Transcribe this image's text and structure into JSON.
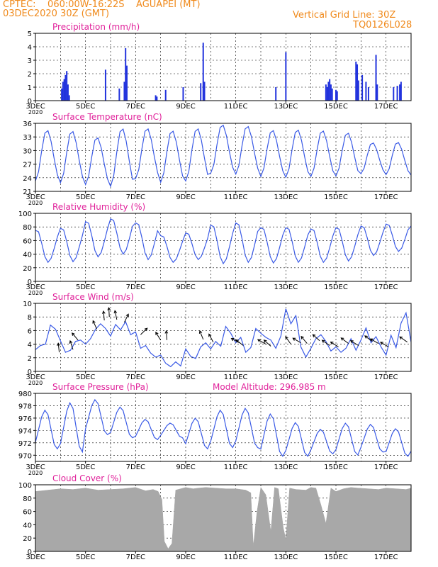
{
  "header": {
    "line1": "CPTEC:    060:00W-16:22S    AGUAPEI (MT)",
    "line2": "03DEC2020 30Z (GMT)",
    "grid_note": "Vertical Grid Line: 30Z",
    "code": "TQ0126L028"
  },
  "colors": {
    "header": "#f08a1c",
    "title": "#e0219a",
    "series": "#3a5ae6",
    "bar": "#2233dd",
    "cloud": "#a8a8a8"
  },
  "x_axis": {
    "range_days": [
      3,
      18
    ],
    "tick_labels": [
      "3DEC",
      "5DEC",
      "7DEC",
      "9DEC",
      "11DEC",
      "13DEC",
      "15DEC",
      "17DEC"
    ],
    "tick_days": [
      3,
      5,
      7,
      9,
      11,
      13,
      15,
      17
    ],
    "truncated_tick": "2020"
  },
  "chart_data": [
    {
      "type": "bar",
      "title": "Precipitation  (mm/h)",
      "ylim": [
        0,
        5
      ],
      "yticks": [
        0,
        1,
        2,
        3,
        4,
        5
      ],
      "bars": [
        [
          4.05,
          0.9
        ],
        [
          4.1,
          1.4
        ],
        [
          4.15,
          1.6
        ],
        [
          4.2,
          1.9
        ],
        [
          4.25,
          2.2
        ],
        [
          4.3,
          1.2
        ],
        [
          4.35,
          0.4
        ],
        [
          5.8,
          2.3
        ],
        [
          6.35,
          0.9
        ],
        [
          6.55,
          1.4
        ],
        [
          6.6,
          3.9
        ],
        [
          6.65,
          2.6
        ],
        [
          7.8,
          0.4
        ],
        [
          7.85,
          0.3
        ],
        [
          8.2,
          0.8
        ],
        [
          8.9,
          1.0
        ],
        [
          9.6,
          1.3
        ],
        [
          9.7,
          4.3
        ],
        [
          9.75,
          1.4
        ],
        [
          12.6,
          1.0
        ],
        [
          13.0,
          3.6
        ],
        [
          14.6,
          1.2
        ],
        [
          14.65,
          1.0
        ],
        [
          14.7,
          1.4
        ],
        [
          14.75,
          1.6
        ],
        [
          14.8,
          1.2
        ],
        [
          14.85,
          0.9
        ],
        [
          15.0,
          0.8
        ],
        [
          15.05,
          0.7
        ],
        [
          15.8,
          2.9
        ],
        [
          15.85,
          2.7
        ],
        [
          15.9,
          1.5
        ],
        [
          16.05,
          1.9
        ],
        [
          16.2,
          1.4
        ],
        [
          16.3,
          1.0
        ],
        [
          16.6,
          3.4
        ],
        [
          16.65,
          1.2
        ],
        [
          17.3,
          1.0
        ],
        [
          17.45,
          1.1
        ],
        [
          17.55,
          1.2
        ],
        [
          17.6,
          1.4
        ]
      ]
    },
    {
      "type": "line",
      "title": "Surface Temperature (nC)",
      "ylim": [
        21,
        36
      ],
      "yticks": [
        21,
        24,
        27,
        30,
        33,
        36
      ],
      "min_phase": 0.0,
      "max_phase": 0.45,
      "daily": [
        [
          23.3,
          34.6
        ],
        [
          22.9,
          34.4
        ],
        [
          22.5,
          33.0
        ],
        [
          22.1,
          35.0
        ],
        [
          23.8,
          35.0
        ],
        [
          23.0,
          34.5
        ],
        [
          23.3,
          35.0
        ],
        [
          25.0,
          35.8
        ],
        [
          24.8,
          35.5
        ],
        [
          24.3,
          34.6
        ],
        [
          24.1,
          34.7
        ],
        [
          24.3,
          34.5
        ],
        [
          24.4,
          34.0
        ],
        [
          24.9,
          31.8
        ],
        [
          24.7,
          31.9
        ],
        [
          24.6,
          30.5
        ]
      ]
    },
    {
      "type": "line",
      "title": "Relative Humidity (%)",
      "ylim": [
        0,
        100
      ],
      "yticks": [
        0,
        20,
        40,
        60,
        80,
        100
      ],
      "min_phase": 0.5,
      "max_phase": 0.05,
      "daily": [
        [
          28,
          76
        ],
        [
          29,
          79
        ],
        [
          36,
          89
        ],
        [
          40,
          93
        ],
        [
          32,
          87
        ],
        [
          28,
          68
        ],
        [
          32,
          72
        ],
        [
          26,
          84
        ],
        [
          28,
          87
        ],
        [
          27,
          80
        ],
        [
          28,
          80
        ],
        [
          28,
          78
        ],
        [
          30,
          80
        ],
        [
          38,
          82
        ],
        [
          44,
          85
        ],
        [
          50,
          82
        ]
      ]
    },
    {
      "type": "line",
      "title": "Surface Wind (m/s)",
      "ylim": [
        0,
        10
      ],
      "yticks": [
        0,
        2,
        4,
        6,
        8,
        10
      ],
      "points": [
        [
          3,
          3.2
        ],
        [
          3.2,
          3.8
        ],
        [
          3.4,
          4.0
        ],
        [
          3.6,
          6.8
        ],
        [
          3.8,
          6.2
        ],
        [
          4.0,
          4.5
        ],
        [
          4.2,
          2.8
        ],
        [
          4.4,
          3.1
        ],
        [
          4.6,
          4.4
        ],
        [
          4.8,
          4.6
        ],
        [
          5.0,
          4.0
        ],
        [
          5.2,
          4.8
        ],
        [
          5.4,
          6.2
        ],
        [
          5.6,
          7.0
        ],
        [
          5.8,
          6.3
        ],
        [
          6.0,
          5.2
        ],
        [
          6.2,
          6.9
        ],
        [
          6.4,
          6.1
        ],
        [
          6.6,
          7.3
        ],
        [
          6.8,
          5.4
        ],
        [
          7.0,
          5.8
        ],
        [
          7.2,
          3.4
        ],
        [
          7.4,
          3.8
        ],
        [
          7.6,
          2.7
        ],
        [
          7.8,
          2.1
        ],
        [
          8.0,
          2.4
        ],
        [
          8.2,
          1.2
        ],
        [
          8.4,
          0.7
        ],
        [
          8.6,
          1.4
        ],
        [
          8.8,
          0.8
        ],
        [
          9.0,
          3.3
        ],
        [
          9.2,
          2.2
        ],
        [
          9.4,
          1.9
        ],
        [
          9.6,
          3.6
        ],
        [
          9.8,
          4.2
        ],
        [
          10.0,
          3.3
        ],
        [
          10.2,
          4.4
        ],
        [
          10.4,
          3.7
        ],
        [
          10.6,
          6.6
        ],
        [
          10.8,
          5.6
        ],
        [
          11.0,
          4.2
        ],
        [
          11.2,
          5.0
        ],
        [
          11.4,
          2.8
        ],
        [
          11.6,
          3.5
        ],
        [
          11.8,
          6.3
        ],
        [
          12.0,
          5.6
        ],
        [
          12.2,
          5.0
        ],
        [
          12.4,
          4.6
        ],
        [
          12.6,
          3.4
        ],
        [
          12.8,
          5.2
        ],
        [
          13.0,
          9.2
        ],
        [
          13.2,
          7.0
        ],
        [
          13.4,
          8.2
        ],
        [
          13.6,
          3.6
        ],
        [
          13.8,
          2.1
        ],
        [
          14.0,
          3.4
        ],
        [
          14.2,
          4.8
        ],
        [
          14.4,
          5.4
        ],
        [
          14.6,
          4.4
        ],
        [
          14.8,
          3.0
        ],
        [
          15.0,
          3.6
        ],
        [
          15.2,
          2.8
        ],
        [
          15.4,
          3.4
        ],
        [
          15.6,
          4.8
        ],
        [
          15.8,
          3.1
        ],
        [
          16.0,
          4.6
        ],
        [
          16.2,
          6.4
        ],
        [
          16.4,
          4.2
        ],
        [
          16.6,
          5.1
        ],
        [
          16.8,
          3.6
        ],
        [
          17.0,
          2.4
        ],
        [
          17.2,
          5.3
        ],
        [
          17.4,
          3.5
        ],
        [
          17.6,
          7.1
        ],
        [
          17.8,
          8.6
        ],
        [
          18.0,
          4.3
        ]
      ],
      "vectors": [
        [
          3.95,
          2.8,
          -6
        ],
        [
          4.5,
          3.2,
          -18
        ],
        [
          4.7,
          4.6,
          -40
        ],
        [
          5.45,
          6.2,
          -24
        ],
        [
          5.75,
          7.5,
          -5
        ],
        [
          5.95,
          8.0,
          -3
        ],
        [
          6.25,
          7.6,
          -12
        ],
        [
          6.55,
          7.2,
          26
        ],
        [
          7.2,
          5.4,
          46
        ],
        [
          8.0,
          4.6,
          -32
        ],
        [
          8.25,
          4.6,
          -4
        ],
        [
          9.7,
          4.7,
          -22
        ],
        [
          10.1,
          4.3,
          -28
        ],
        [
          11.15,
          4.2,
          -62
        ],
        [
          11.3,
          3.8,
          -52
        ],
        [
          12.2,
          4.0,
          -60
        ],
        [
          12.4,
          3.7,
          -48
        ],
        [
          13.2,
          4.0,
          -35
        ],
        [
          13.6,
          4.2,
          -60
        ],
        [
          13.85,
          4.1,
          -40
        ],
        [
          14.35,
          4.5,
          -48
        ],
        [
          14.75,
          3.8,
          -55
        ],
        [
          15.1,
          3.6,
          -58
        ],
        [
          15.5,
          4.1,
          -53
        ],
        [
          15.9,
          3.8,
          -58
        ],
        [
          16.45,
          4.4,
          -53
        ],
        [
          16.7,
          4.1,
          -60
        ],
        [
          17.1,
          3.6,
          -60
        ],
        [
          17.85,
          4.3,
          -55
        ]
      ]
    },
    {
      "type": "line",
      "title": "Surface Pressure (hPa)",
      "annotation": "Model Altitude: 296.985  m",
      "ylim": [
        969,
        980
      ],
      "yticks": [
        970,
        972,
        974,
        976,
        978,
        980
      ],
      "min_phase": 0.85,
      "max_phase": 0.4,
      "daily": [
        [
          971.0,
          977.3
        ],
        [
          970.5,
          978.5
        ],
        [
          973.3,
          979.0
        ],
        [
          972.8,
          977.8
        ],
        [
          972.5,
          975.8
        ],
        [
          972.8,
          975.2
        ],
        [
          971.0,
          976.0
        ],
        [
          971.2,
          977.3
        ],
        [
          971.2,
          977.6
        ],
        [
          969.8,
          976.7
        ],
        [
          969.8,
          975.3
        ],
        [
          970.2,
          974.2
        ],
        [
          970.0,
          975.2
        ],
        [
          970.5,
          975.0
        ],
        [
          969.8,
          974.3
        ],
        [
          969.9,
          974.4
        ]
      ]
    },
    {
      "type": "area",
      "title": "Cloud Cover (%)",
      "ylim": [
        0,
        100
      ],
      "yticks": [
        0,
        20,
        40,
        60,
        80,
        100
      ],
      "points": [
        [
          3,
          90
        ],
        [
          3.5,
          92
        ],
        [
          4.0,
          94
        ],
        [
          4.5,
          93
        ],
        [
          5.0,
          95
        ],
        [
          5.5,
          92
        ],
        [
          6.0,
          93
        ],
        [
          6.5,
          94
        ],
        [
          7.0,
          96
        ],
        [
          7.4,
          91
        ],
        [
          7.7,
          93
        ],
        [
          7.9,
          90
        ],
        [
          8.05,
          78
        ],
        [
          8.15,
          15
        ],
        [
          8.3,
          4
        ],
        [
          8.45,
          12
        ],
        [
          8.6,
          92
        ],
        [
          9.0,
          96
        ],
        [
          9.3,
          94
        ],
        [
          9.5,
          95
        ],
        [
          9.8,
          96
        ],
        [
          10.2,
          95
        ],
        [
          10.6,
          94
        ],
        [
          11.0,
          94
        ],
        [
          11.4,
          92
        ],
        [
          11.6,
          88
        ],
        [
          11.7,
          8
        ],
        [
          11.85,
          60
        ],
        [
          12.0,
          96
        ],
        [
          12.2,
          85
        ],
        [
          12.4,
          30
        ],
        [
          12.55,
          96
        ],
        [
          12.7,
          94
        ],
        [
          12.9,
          35
        ],
        [
          13.0,
          18
        ],
        [
          13.15,
          95
        ],
        [
          13.4,
          93
        ],
        [
          13.8,
          92
        ],
        [
          14.0,
          96
        ],
        [
          14.2,
          95
        ],
        [
          14.4,
          70
        ],
        [
          14.6,
          42
        ],
        [
          14.8,
          95
        ],
        [
          15.0,
          90
        ],
        [
          15.3,
          94
        ],
        [
          15.6,
          96
        ],
        [
          15.9,
          95
        ],
        [
          16.3,
          94
        ],
        [
          16.7,
          93
        ],
        [
          17.0,
          95
        ],
        [
          17.4,
          94
        ],
        [
          17.8,
          93
        ],
        [
          18.0,
          95
        ]
      ]
    }
  ]
}
